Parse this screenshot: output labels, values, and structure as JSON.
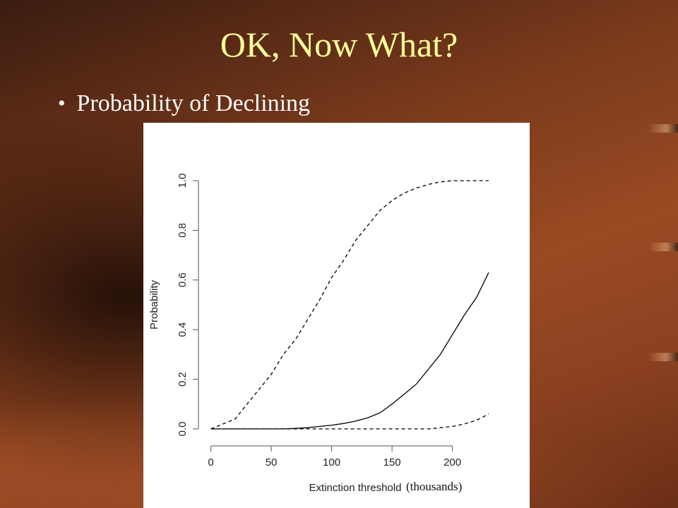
{
  "slide": {
    "title": "OK, Now What?",
    "bullet": "Probability of Declining",
    "unit_note": "(thousands)"
  },
  "colors": {
    "title": "#ffff99",
    "bullet_text": "#ffffff",
    "plot_background": "#ffffff",
    "line_color": "#000000"
  },
  "chart_data": {
    "type": "line",
    "title": "",
    "xlabel": "Extinction threshold",
    "ylabel": "Probability",
    "xlim": [
      -5,
      240
    ],
    "ylim": [
      -0.04,
      1.04
    ],
    "xticks": [
      0,
      50,
      100,
      150,
      200
    ],
    "yticks": [
      0.0,
      0.2,
      0.4,
      0.6,
      0.8,
      1.0
    ],
    "ytick_labels": [
      "0.0",
      "0.2",
      "0.4",
      "0.6",
      "0.8",
      "1.0"
    ],
    "grid": false,
    "legend": "none",
    "series": [
      {
        "style": "dashed",
        "x": [
          0,
          10,
          20,
          30,
          40,
          50,
          60,
          70,
          80,
          90,
          100,
          110,
          120,
          130,
          140,
          150,
          160,
          170,
          180,
          190,
          200,
          210,
          220,
          230
        ],
        "y": [
          0.0,
          0.02,
          0.04,
          0.1,
          0.16,
          0.22,
          0.3,
          0.36,
          0.44,
          0.52,
          0.61,
          0.68,
          0.76,
          0.82,
          0.88,
          0.92,
          0.95,
          0.97,
          0.985,
          0.995,
          1.0,
          1.0,
          1.0,
          1.0
        ]
      },
      {
        "style": "solid",
        "x": [
          0,
          20,
          40,
          60,
          70,
          80,
          90,
          100,
          110,
          120,
          130,
          140,
          150,
          160,
          170,
          180,
          190,
          200,
          210,
          220,
          230
        ],
        "y": [
          0.0,
          0.0,
          0.0,
          0.0,
          0.002,
          0.005,
          0.01,
          0.015,
          0.022,
          0.032,
          0.045,
          0.065,
          0.1,
          0.14,
          0.18,
          0.24,
          0.3,
          0.38,
          0.46,
          0.53,
          0.63
        ]
      },
      {
        "style": "dashed",
        "x": [
          0,
          50,
          100,
          150,
          180,
          190,
          200,
          210,
          220,
          230
        ],
        "y": [
          0.0,
          0.0,
          0.0,
          0.0,
          0.0,
          0.005,
          0.01,
          0.02,
          0.035,
          0.06
        ]
      }
    ]
  }
}
